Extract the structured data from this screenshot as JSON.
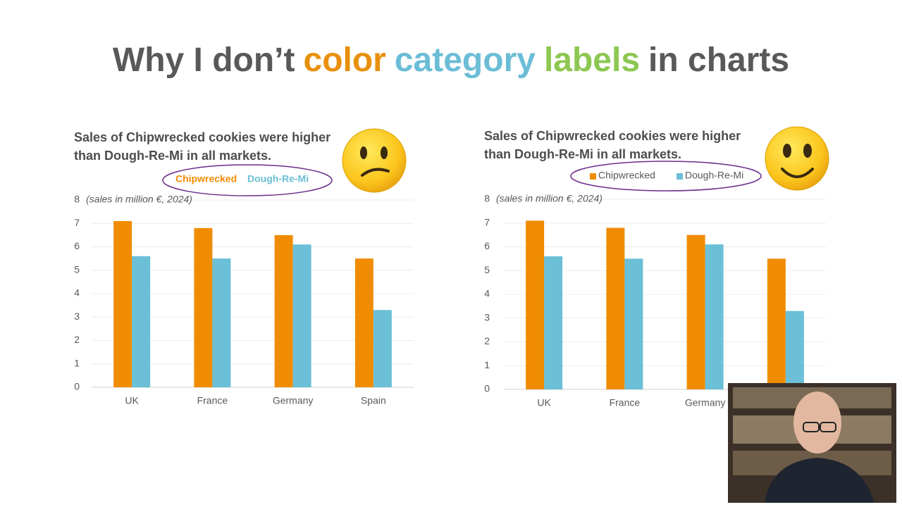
{
  "title_parts": [
    {
      "text": "Why I don’t",
      "color": "#595959"
    },
    {
      "text": "color",
      "color": "#e8900c"
    },
    {
      "text": "category",
      "color": "#6bbdd6"
    },
    {
      "text": "labels",
      "color": "#8dc751"
    },
    {
      "text": "in charts",
      "color": "#595959"
    }
  ],
  "chart_data": [
    {
      "type": "bar",
      "title": "Sales of Chipwrecked cookies were higher than Dough-Re-Mi in all markets.",
      "annotation": "(sales in million €,  2024)",
      "categories": [
        "UK",
        "France",
        "Germany",
        "Spain"
      ],
      "series": [
        {
          "name": "Chipwrecked",
          "color": "#f08c00",
          "values": [
            7.1,
            6.8,
            6.5,
            5.5
          ]
        },
        {
          "name": "Dough-Re-Mi",
          "color": "#6bbfd6",
          "values": [
            5.6,
            5.5,
            6.1,
            3.3
          ]
        }
      ],
      "ylim": [
        0,
        8
      ],
      "yticks": [
        0,
        1,
        2,
        3,
        4,
        5,
        6,
        7,
        8
      ],
      "grid": true,
      "legend": "top",
      "legend_style": "colored-text"
    },
    {
      "type": "bar",
      "title": "Sales of Chipwrecked cookies were higher than Dough-Re-Mi in all markets.",
      "annotation": "(sales in million €,  2024)",
      "categories": [
        "UK",
        "France",
        "Germany",
        null
      ],
      "series": [
        {
          "name": "Chipwrecked",
          "color": "#f08c00",
          "values": [
            7.1,
            6.8,
            6.5,
            5.5
          ]
        },
        {
          "name": "Dough-Re-Mi",
          "color": "#6bbfd6",
          "values": [
            5.6,
            5.5,
            6.1,
            3.3
          ]
        }
      ],
      "ylim": [
        0,
        8
      ],
      "yticks": [
        0,
        1,
        2,
        3,
        4,
        5,
        6,
        7,
        8
      ],
      "grid": true,
      "legend": "top",
      "legend_style": "markers"
    }
  ]
}
